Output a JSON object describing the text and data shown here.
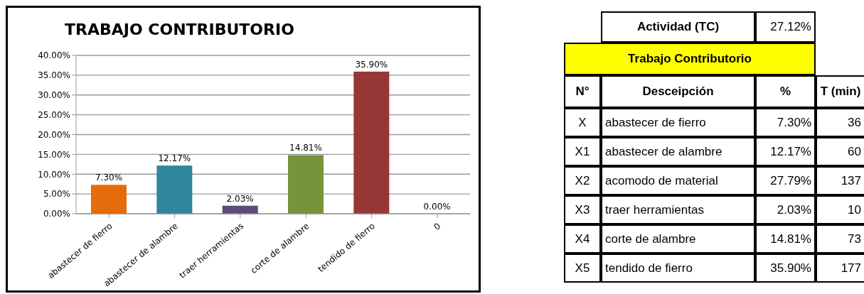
{
  "chart_data": [
    {
      "type": "bar",
      "title": "TRABAJO CONTRIBUTORIO",
      "categories": [
        "abastecer de fierro",
        "abastecer de alambre",
        "traer herramientas",
        "corte de alambre",
        "tendido de fierro",
        "0"
      ],
      "values": [
        7.3,
        12.17,
        2.03,
        14.81,
        35.9,
        0
      ],
      "colors": [
        "#e46c0a",
        "#31859c",
        "#604a7b",
        "#77933c",
        "#953735",
        "#4f81bd"
      ],
      "value_labels": [
        "7.30%",
        "12.17%",
        "2.03%",
        "14.81%",
        "35.90%",
        "0.00%"
      ],
      "ylim": [
        0,
        40
      ],
      "yticks": [
        {
          "value": 0,
          "label": "0.00%"
        },
        {
          "value": 5,
          "label": "5.00%"
        },
        {
          "value": 10,
          "label": "10.00%"
        },
        {
          "value": 15,
          "label": "15.00%"
        },
        {
          "value": 20,
          "label": "20.00%"
        },
        {
          "value": 25,
          "label": "25.00%"
        },
        {
          "value": 30,
          "label": "30.00%"
        },
        {
          "value": 35,
          "label": "35.00%"
        },
        {
          "value": 40,
          "label": "40.00%"
        }
      ],
      "grid": "y"
    },
    {
      "type": "other",
      "annotations": [
        "Actividad (TC)",
        "27.12%",
        "Trabajo Contributorio",
        "N°",
        "Desceipción",
        "%",
        "T (min)",
        "X",
        "abastecer de fierro",
        "7.30%",
        "36",
        "X1",
        "abastecer de alambre",
        "12.17%",
        "60",
        "X2",
        "acomodo de material",
        "27.79%",
        "137",
        "X3",
        "traer herramientas",
        "2.03%",
        "10",
        "X4",
        "corte de alambre",
        "14.81%",
        "73",
        "X5",
        "tendido de fierro",
        "35.90%",
        "177"
      ]
    }
  ]
}
